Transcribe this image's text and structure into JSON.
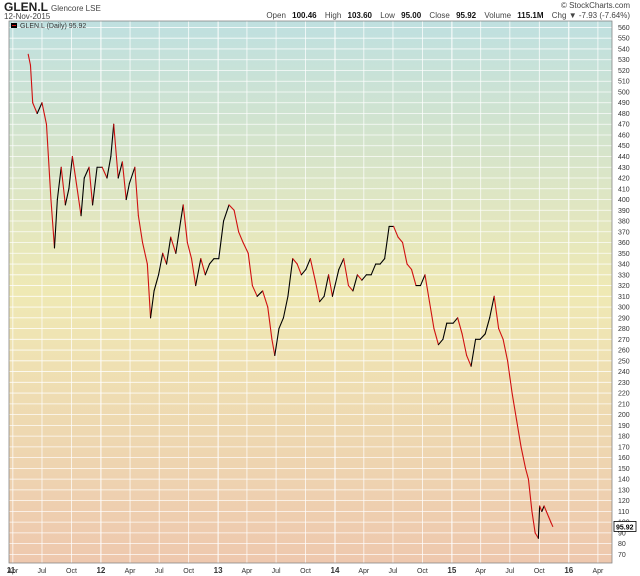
{
  "header": {
    "symbol": "GLEN.L",
    "company": "Glencore LSE",
    "date": "12-Nov-2015",
    "brand": "© StockCharts.com",
    "open_label": "Open",
    "open": "100.46",
    "high_label": "High",
    "high": "103.60",
    "low_label": "Low",
    "low": "95.00",
    "close_label": "Close",
    "close": "95.92",
    "volume_label": "Volume",
    "volume": "115.1M",
    "chg_label": "Chg",
    "chg": "-7.93 (-7.64%)",
    "chg_icon": "down-triangle-icon"
  },
  "colors": {
    "bg_top": "#bfe0e0",
    "bg_mid": "#efe9b4",
    "bg_bottom": "#eec8ae",
    "up": "#000000",
    "down": "#d01010",
    "grid": "#ffffff"
  },
  "chart_data": {
    "type": "line",
    "title": "GLEN.L (Daily) 95.92",
    "legend_icon": "price-bars-icon",
    "last_value_tag": "95.92",
    "grid": true,
    "ylim": [
      62,
      566
    ],
    "xlim": [
      "2011-03-20",
      "2016-05-15"
    ],
    "y_ticks": [
      70,
      80,
      90,
      100,
      110,
      120,
      130,
      140,
      150,
      160,
      170,
      180,
      190,
      200,
      210,
      220,
      230,
      240,
      250,
      260,
      270,
      280,
      290,
      300,
      310,
      320,
      330,
      340,
      350,
      360,
      370,
      380,
      390,
      400,
      410,
      420,
      430,
      440,
      450,
      460,
      470,
      480,
      490,
      500,
      510,
      520,
      530,
      540,
      550,
      560
    ],
    "x_ticks": [
      {
        "label": "11",
        "date": "2011-01-01",
        "major": true
      },
      {
        "label": "Apr",
        "date": "2011-04-01"
      },
      {
        "label": "Jul",
        "date": "2011-07-01"
      },
      {
        "label": "Oct",
        "date": "2011-10-01"
      },
      {
        "label": "12",
        "date": "2012-01-01",
        "major": true
      },
      {
        "label": "Apr",
        "date": "2012-04-01"
      },
      {
        "label": "Jul",
        "date": "2012-07-01"
      },
      {
        "label": "Oct",
        "date": "2012-10-01"
      },
      {
        "label": "13",
        "date": "2013-01-01",
        "major": true
      },
      {
        "label": "Apr",
        "date": "2013-04-01"
      },
      {
        "label": "Jul",
        "date": "2013-07-01"
      },
      {
        "label": "Oct",
        "date": "2013-10-01"
      },
      {
        "label": "14",
        "date": "2014-01-01",
        "major": true
      },
      {
        "label": "Apr",
        "date": "2014-04-01"
      },
      {
        "label": "Jul",
        "date": "2014-07-01"
      },
      {
        "label": "Oct",
        "date": "2014-10-01"
      },
      {
        "label": "15",
        "date": "2015-01-01",
        "major": true
      },
      {
        "label": "Apr",
        "date": "2015-04-01"
      },
      {
        "label": "Jul",
        "date": "2015-07-01"
      },
      {
        "label": "Oct",
        "date": "2015-10-01"
      },
      {
        "label": "16",
        "date": "2016-01-01",
        "major": true
      },
      {
        "label": "Apr",
        "date": "2016-04-01"
      }
    ],
    "series": [
      {
        "x": [
          "2011-05-19",
          "2011-05-26",
          "2011-06-02",
          "2011-06-16",
          "2011-07-01",
          "2011-07-15",
          "2011-07-29",
          "2011-08-09",
          "2011-08-18",
          "2011-08-30",
          "2011-09-12",
          "2011-09-23",
          "2011-10-04",
          "2011-10-14",
          "2011-10-31",
          "2011-11-10",
          "2011-11-25",
          "2011-12-06",
          "2011-12-20",
          "2012-01-05",
          "2012-01-20",
          "2012-02-01",
          "2012-02-10",
          "2012-02-24",
          "2012-03-08",
          "2012-03-20",
          "2012-03-30",
          "2012-04-16",
          "2012-04-27",
          "2012-05-10",
          "2012-05-25",
          "2012-06-04",
          "2012-06-15",
          "2012-06-29",
          "2012-07-12",
          "2012-07-24",
          "2012-08-06",
          "2012-08-22",
          "2012-09-06",
          "2012-09-14",
          "2012-09-27",
          "2012-10-10",
          "2012-10-23",
          "2012-11-08",
          "2012-11-22",
          "2012-12-05",
          "2012-12-19",
          "2013-01-03",
          "2013-01-18",
          "2013-02-04",
          "2013-02-20",
          "2013-03-06",
          "2013-03-20",
          "2013-04-05",
          "2013-04-18",
          "2013-05-03",
          "2013-05-20",
          "2013-06-05",
          "2013-06-18",
          "2013-06-27",
          "2013-07-10",
          "2013-07-24",
          "2013-08-07",
          "2013-08-22",
          "2013-09-05",
          "2013-09-18",
          "2013-10-02",
          "2013-10-16",
          "2013-10-31",
          "2013-11-14",
          "2013-11-28",
          "2013-12-12",
          "2013-12-24",
          "2014-01-13",
          "2014-01-28",
          "2014-02-12",
          "2014-02-26",
          "2014-03-12",
          "2014-03-26",
          "2014-04-09",
          "2014-04-24",
          "2014-05-08",
          "2014-05-22",
          "2014-06-05",
          "2014-06-19",
          "2014-07-03",
          "2014-07-17",
          "2014-07-31",
          "2014-08-14",
          "2014-08-28",
          "2014-09-11",
          "2014-09-25",
          "2014-10-09",
          "2014-10-23",
          "2014-11-06",
          "2014-11-20",
          "2014-12-04",
          "2014-12-16",
          "2015-01-05",
          "2015-01-19",
          "2015-02-02",
          "2015-02-16",
          "2015-03-02",
          "2015-03-16",
          "2015-03-30",
          "2015-04-15",
          "2015-04-29",
          "2015-05-13",
          "2015-05-27",
          "2015-06-10",
          "2015-06-24",
          "2015-07-08",
          "2015-07-22",
          "2015-08-05",
          "2015-08-19",
          "2015-08-28",
          "2015-09-08",
          "2015-09-18",
          "2015-09-28",
          "2015-10-02",
          "2015-10-09",
          "2015-10-16",
          "2015-10-23",
          "2015-10-30",
          "2015-11-06",
          "2015-11-12"
        ],
        "values": [
          535,
          525,
          490,
          480,
          490,
          470,
          400,
          355,
          400,
          430,
          395,
          410,
          440,
          420,
          385,
          420,
          430,
          395,
          430,
          430,
          420,
          440,
          470,
          420,
          435,
          400,
          415,
          430,
          385,
          360,
          340,
          290,
          315,
          330,
          350,
          340,
          365,
          350,
          380,
          395,
          360,
          345,
          320,
          345,
          330,
          340,
          345,
          345,
          380,
          395,
          390,
          370,
          360,
          350,
          320,
          310,
          315,
          300,
          270,
          255,
          280,
          290,
          310,
          345,
          340,
          330,
          335,
          345,
          325,
          305,
          310,
          330,
          310,
          335,
          345,
          320,
          315,
          330,
          325,
          330,
          330,
          340,
          340,
          345,
          375,
          375,
          365,
          360,
          340,
          335,
          320,
          320,
          330,
          305,
          280,
          265,
          270,
          285,
          285,
          290,
          275,
          255,
          245,
          270,
          270,
          275,
          290,
          310,
          280,
          270,
          250,
          220,
          195,
          170,
          150,
          140,
          110,
          90,
          85,
          115,
          110,
          115,
          110,
          105,
          100,
          96
        ]
      }
    ]
  }
}
